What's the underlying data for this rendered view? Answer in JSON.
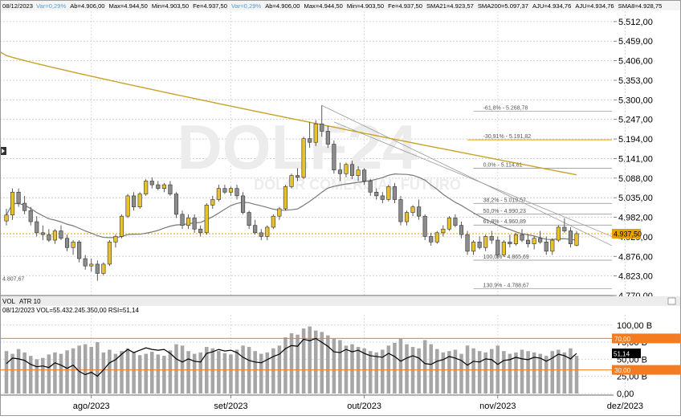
{
  "header": {
    "date": "08/12/2023",
    "items": [
      {
        "text": "Var=0,29%",
        "color": "#5a9bd5"
      },
      {
        "text": "Ab=4.906,00",
        "color": "#000000"
      },
      {
        "text": "Max=4.944,50",
        "color": "#000000"
      },
      {
        "text": "Min=4.903,50",
        "color": "#000000"
      },
      {
        "text": "Fe=4.937,50",
        "color": "#000000"
      },
      {
        "text": "Var=0,29%",
        "color": "#5a9bd5"
      },
      {
        "text": "Ab=4.906,00",
        "color": "#000000"
      },
      {
        "text": "Max=4.944,50",
        "color": "#000000"
      },
      {
        "text": "Min=4.903,50",
        "color": "#000000"
      },
      {
        "text": "Fe=4.937,50",
        "color": "#000000"
      },
      {
        "text": "SMA21=4.923,57",
        "color": "#000000"
      },
      {
        "text": "SMA200=5.097,37",
        "color": "#000000"
      },
      {
        "text": "AJU=4.934,76",
        "color": "#000000"
      },
      {
        "text": "AJU=4.934,76",
        "color": "#000000"
      },
      {
        "text": "SMA8=4.928,75",
        "color": "#000000"
      }
    ]
  },
  "watermark": {
    "title": "DOLF24",
    "subtitle": "DÓLAR COMERCIAL FUTURO"
  },
  "price_panel": {
    "current_price_label": "4.937,50",
    "min_label": "4.807,67",
    "price_axis_labels": [
      "5.512,00",
      "5.459,00",
      "5.406,00",
      "5.353,00",
      "5.300,00",
      "5.247,00",
      "5.194,00",
      "5.141,00",
      "5.088,00",
      "5.035,00",
      "4.982,00",
      "4.929,00",
      "4.876,00",
      "4.823,00",
      "4.770,00"
    ],
    "fibonacci_levels": [
      {
        "label": "-61,8% - 5.268,78",
        "value": 5268.78
      },
      {
        "label": "-30,91% - 5.191,82",
        "value": 5191.82
      },
      {
        "label": "0,0% - 5.114,81",
        "value": 5114.81
      },
      {
        "label": "38,2% - 5.019,57",
        "value": 5019.57
      },
      {
        "label": "50,0% - 4.990,23",
        "value": 4990.23
      },
      {
        "label": "61,8% - 4.960,89",
        "value": 4960.89
      },
      {
        "label": "100,0% - 4.865,69",
        "value": 4865.69
      },
      {
        "label": "130,9% - 4.788,67",
        "value": 4788.67
      }
    ]
  },
  "volume_panel": {
    "tabs": [
      "VOL",
      "ATR 10"
    ],
    "info": "08/12/2023  VOL=55.432.245.350,00  RSI=51,14",
    "axis_labels": [
      "100,00 B",
      "75,00 B",
      "50,00 B",
      "25,00 B",
      "0,00"
    ],
    "rsi_level_high": "70,00",
    "rsi_level_low": "30,00",
    "rsi_current": "51,14"
  },
  "x_axis_labels": [
    {
      "label": "ago/2023",
      "index": 14
    },
    {
      "label": "set/2023",
      "index": 37
    },
    {
      "label": "out/2023",
      "index": 59
    },
    {
      "label": "nov/2023",
      "index": 81
    },
    {
      "label": "dez/2023",
      "index": 102
    }
  ],
  "colors": {
    "bull": "#e8c12c",
    "bear": "#8c8c8c",
    "sma200": "#c9a227",
    "sma21": "#7a7a7a",
    "price_tag": "#e8a000",
    "rsi_high_tag": "#f47b20",
    "rsi_low_tag": "#f47b20",
    "volume": "#a6a6a6"
  },
  "chart_data": {
    "type": "candlestick",
    "y_range": [
      4770,
      5540
    ],
    "volume_range": [
      0,
      115
    ],
    "rsi_range": [
      0,
      100
    ],
    "candles": [
      [
        4972,
        5005,
        4960,
        4988
      ],
      [
        4988,
        5060,
        4975,
        5050
      ],
      [
        5050,
        5060,
        5010,
        5020
      ],
      [
        5020,
        5040,
        4990,
        5000
      ],
      [
        5000,
        5010,
        4960,
        4970
      ],
      [
        4970,
        4985,
        4930,
        4940
      ],
      [
        4940,
        4960,
        4920,
        4935
      ],
      [
        4935,
        4950,
        4915,
        4920
      ],
      [
        4920,
        4950,
        4910,
        4945
      ],
      [
        4945,
        4960,
        4920,
        4925
      ],
      [
        4925,
        4935,
        4890,
        4900
      ],
      [
        4900,
        4920,
        4880,
        4915
      ],
      [
        4915,
        4920,
        4860,
        4870
      ],
      [
        4870,
        4880,
        4840,
        4850
      ],
      [
        4850,
        4870,
        4835,
        4855
      ],
      [
        4855,
        4865,
        4810,
        4830
      ],
      [
        4830,
        4860,
        4825,
        4855
      ],
      [
        4855,
        4920,
        4850,
        4915
      ],
      [
        4915,
        4935,
        4900,
        4930
      ],
      [
        4930,
        4990,
        4925,
        4985
      ],
      [
        4985,
        5045,
        4980,
        5040
      ],
      [
        5040,
        5050,
        5000,
        5010
      ],
      [
        5010,
        5050,
        5005,
        5045
      ],
      [
        5045,
        5085,
        5040,
        5080
      ],
      [
        5080,
        5090,
        5060,
        5070
      ],
      [
        5070,
        5080,
        5055,
        5060
      ],
      [
        5060,
        5075,
        5050,
        5070
      ],
      [
        5070,
        5080,
        5040,
        5045
      ],
      [
        5045,
        5050,
        4980,
        4990
      ],
      [
        4990,
        5000,
        4950,
        4960
      ],
      [
        4960,
        4990,
        4950,
        4980
      ],
      [
        4980,
        4990,
        4940,
        4950
      ],
      [
        4950,
        4960,
        4930,
        4940
      ],
      [
        4940,
        5020,
        4935,
        5015
      ],
      [
        5015,
        5040,
        5005,
        5030
      ],
      [
        5030,
        5070,
        5025,
        5060
      ],
      [
        5060,
        5070,
        5045,
        5050
      ],
      [
        5050,
        5065,
        5040,
        5060
      ],
      [
        5060,
        5070,
        5030,
        5040
      ],
      [
        5040,
        5050,
        4990,
        4995
      ],
      [
        4995,
        5000,
        4950,
        4960
      ],
      [
        4960,
        4975,
        4935,
        4940
      ],
      [
        4940,
        4950,
        4920,
        4930
      ],
      [
        4930,
        4960,
        4920,
        4955
      ],
      [
        4955,
        4990,
        4950,
        4985
      ],
      [
        4985,
        5010,
        4975,
        5005
      ],
      [
        5005,
        5070,
        5000,
        5065
      ],
      [
        5065,
        5100,
        5060,
        5095
      ],
      [
        5095,
        5115,
        5080,
        5090
      ],
      [
        5090,
        5200,
        5085,
        5195
      ],
      [
        5195,
        5240,
        5170,
        5185
      ],
      [
        5185,
        5245,
        5175,
        5235
      ],
      [
        5235,
        5285,
        5200,
        5215
      ],
      [
        5215,
        5230,
        5170,
        5180
      ],
      [
        5180,
        5190,
        5100,
        5110
      ],
      [
        5110,
        5130,
        5080,
        5100
      ],
      [
        5100,
        5130,
        5090,
        5125
      ],
      [
        5125,
        5135,
        5085,
        5095
      ],
      [
        5095,
        5120,
        5080,
        5110
      ],
      [
        5110,
        5115,
        5070,
        5080
      ],
      [
        5080,
        5085,
        5040,
        5050
      ],
      [
        5050,
        5060,
        5030,
        5040
      ],
      [
        5040,
        5050,
        5020,
        5030
      ],
      [
        5030,
        5070,
        5025,
        5065
      ],
      [
        5065,
        5075,
        5020,
        5030
      ],
      [
        5030,
        5040,
        4960,
        4970
      ],
      [
        4970,
        5000,
        4960,
        4995
      ],
      [
        4995,
        5015,
        4985,
        5010
      ],
      [
        5010,
        5030,
        4975,
        4985
      ],
      [
        4985,
        4990,
        4920,
        4930
      ],
      [
        4930,
        4940,
        4905,
        4915
      ],
      [
        4915,
        4945,
        4910,
        4940
      ],
      [
        4940,
        4960,
        4930,
        4950
      ],
      [
        4950,
        4985,
        4945,
        4980
      ],
      [
        4980,
        4990,
        4955,
        4960
      ],
      [
        4960,
        4970,
        4925,
        4935
      ],
      [
        4935,
        4945,
        4880,
        4890
      ],
      [
        4890,
        4920,
        4880,
        4915
      ],
      [
        4915,
        4930,
        4895,
        4900
      ],
      [
        4900,
        4935,
        4890,
        4930
      ],
      [
        4930,
        4945,
        4910,
        4920
      ],
      [
        4920,
        4930,
        4870,
        4880
      ],
      [
        4880,
        4920,
        4875,
        4915
      ],
      [
        4915,
        4935,
        4900,
        4910
      ],
      [
        4910,
        4940,
        4905,
        4935
      ],
      [
        4935,
        4950,
        4915,
        4920
      ],
      [
        4920,
        4935,
        4900,
        4910
      ],
      [
        4910,
        4930,
        4895,
        4925
      ],
      [
        4925,
        4945,
        4910,
        4915
      ],
      [
        4915,
        4930,
        4880,
        4890
      ],
      [
        4890,
        4925,
        4880,
        4920
      ],
      [
        4920,
        4960,
        4915,
        4955
      ],
      [
        4955,
        4980,
        4940,
        4945
      ],
      [
        4945,
        4955,
        4900,
        4910
      ],
      [
        4906,
        4944.5,
        4903.5,
        4937.5
      ]
    ],
    "volume": [
      62,
      58,
      65,
      60,
      55,
      50,
      52,
      57,
      60,
      58,
      63,
      66,
      70,
      72,
      68,
      75,
      60,
      64,
      58,
      62,
      66,
      60,
      56,
      58,
      61,
      57,
      55,
      63,
      72,
      70,
      62,
      58,
      60,
      68,
      66,
      62,
      59,
      57,
      64,
      70,
      68,
      62,
      58,
      60,
      66,
      70,
      82,
      88,
      86,
      95,
      98,
      92,
      90,
      85,
      80,
      78,
      70,
      72,
      68,
      66,
      62,
      60,
      64,
      70,
      74,
      80,
      72,
      68,
      66,
      78,
      72,
      65,
      60,
      62,
      64,
      58,
      70,
      66,
      62,
      60,
      65,
      70,
      62,
      58,
      60,
      64,
      62,
      60,
      58,
      55,
      62,
      64,
      60,
      66,
      55
    ],
    "rsi": [
      38,
      45,
      44,
      42,
      37,
      34,
      35,
      33,
      39,
      36,
      32,
      36,
      28,
      24,
      27,
      22,
      30,
      39,
      43,
      50,
      56,
      52,
      55,
      58,
      56,
      55,
      56,
      51,
      44,
      40,
      44,
      41,
      40,
      51,
      53,
      56,
      54,
      55,
      52,
      46,
      42,
      40,
      39,
      43,
      47,
      50,
      57,
      61,
      60,
      69,
      67,
      70,
      65,
      60,
      53,
      52,
      56,
      53,
      55,
      51,
      48,
      47,
      46,
      51,
      47,
      41,
      45,
      48,
      45,
      38,
      37,
      41,
      43,
      47,
      45,
      42,
      36,
      41,
      40,
      44,
      43,
      37,
      42,
      43,
      46,
      44,
      43,
      46,
      45,
      41,
      45,
      50,
      48,
      44,
      51
    ]
  }
}
